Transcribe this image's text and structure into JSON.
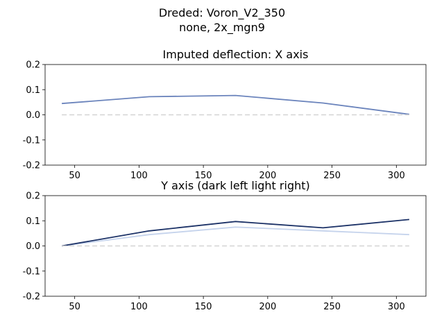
{
  "figure": {
    "title_line1": "Dreded: Voron_V2_350",
    "title_line2": "none, 2x_mgn9"
  },
  "chart_data": [
    {
      "type": "line",
      "title": "Imputed deflection: X axis",
      "xlim": [
        27,
        323
      ],
      "ylim": [
        -0.2,
        0.2
      ],
      "xticks": [
        50,
        100,
        150,
        200,
        250,
        300
      ],
      "yticks": [
        -0.2,
        -0.1,
        0.0,
        0.1,
        0.2
      ],
      "grid": false,
      "series": [
        {
          "color": "#6b84bc",
          "dashed": false,
          "x": [
            40,
            108,
            175,
            243,
            310
          ],
          "y": [
            0.045,
            0.072,
            0.077,
            0.047,
            0.002
          ]
        },
        {
          "color": "#d4d4d4",
          "dashed": true,
          "x": [
            40,
            310
          ],
          "y": [
            0.0,
            0.0
          ]
        }
      ]
    },
    {
      "type": "line",
      "title": "Y axis (dark left light right)",
      "xlim": [
        27,
        323
      ],
      "ylim": [
        -0.2,
        0.2
      ],
      "xticks": [
        50,
        100,
        150,
        200,
        250,
        300
      ],
      "yticks": [
        -0.2,
        -0.1,
        0.0,
        0.1,
        0.2
      ],
      "grid": false,
      "series": [
        {
          "color": "#c5d3ec",
          "dashed": false,
          "x": [
            40,
            108,
            175,
            243,
            310
          ],
          "y": [
            0.0,
            0.045,
            0.075,
            0.06,
            0.045
          ]
        },
        {
          "color": "#1c3267",
          "dashed": false,
          "x": [
            40,
            108,
            175,
            243,
            310
          ],
          "y": [
            0.0,
            0.06,
            0.097,
            0.072,
            0.105
          ]
        },
        {
          "color": "#d4d4d4",
          "dashed": true,
          "x": [
            40,
            310
          ],
          "y": [
            0.0,
            0.0
          ]
        }
      ]
    }
  ]
}
